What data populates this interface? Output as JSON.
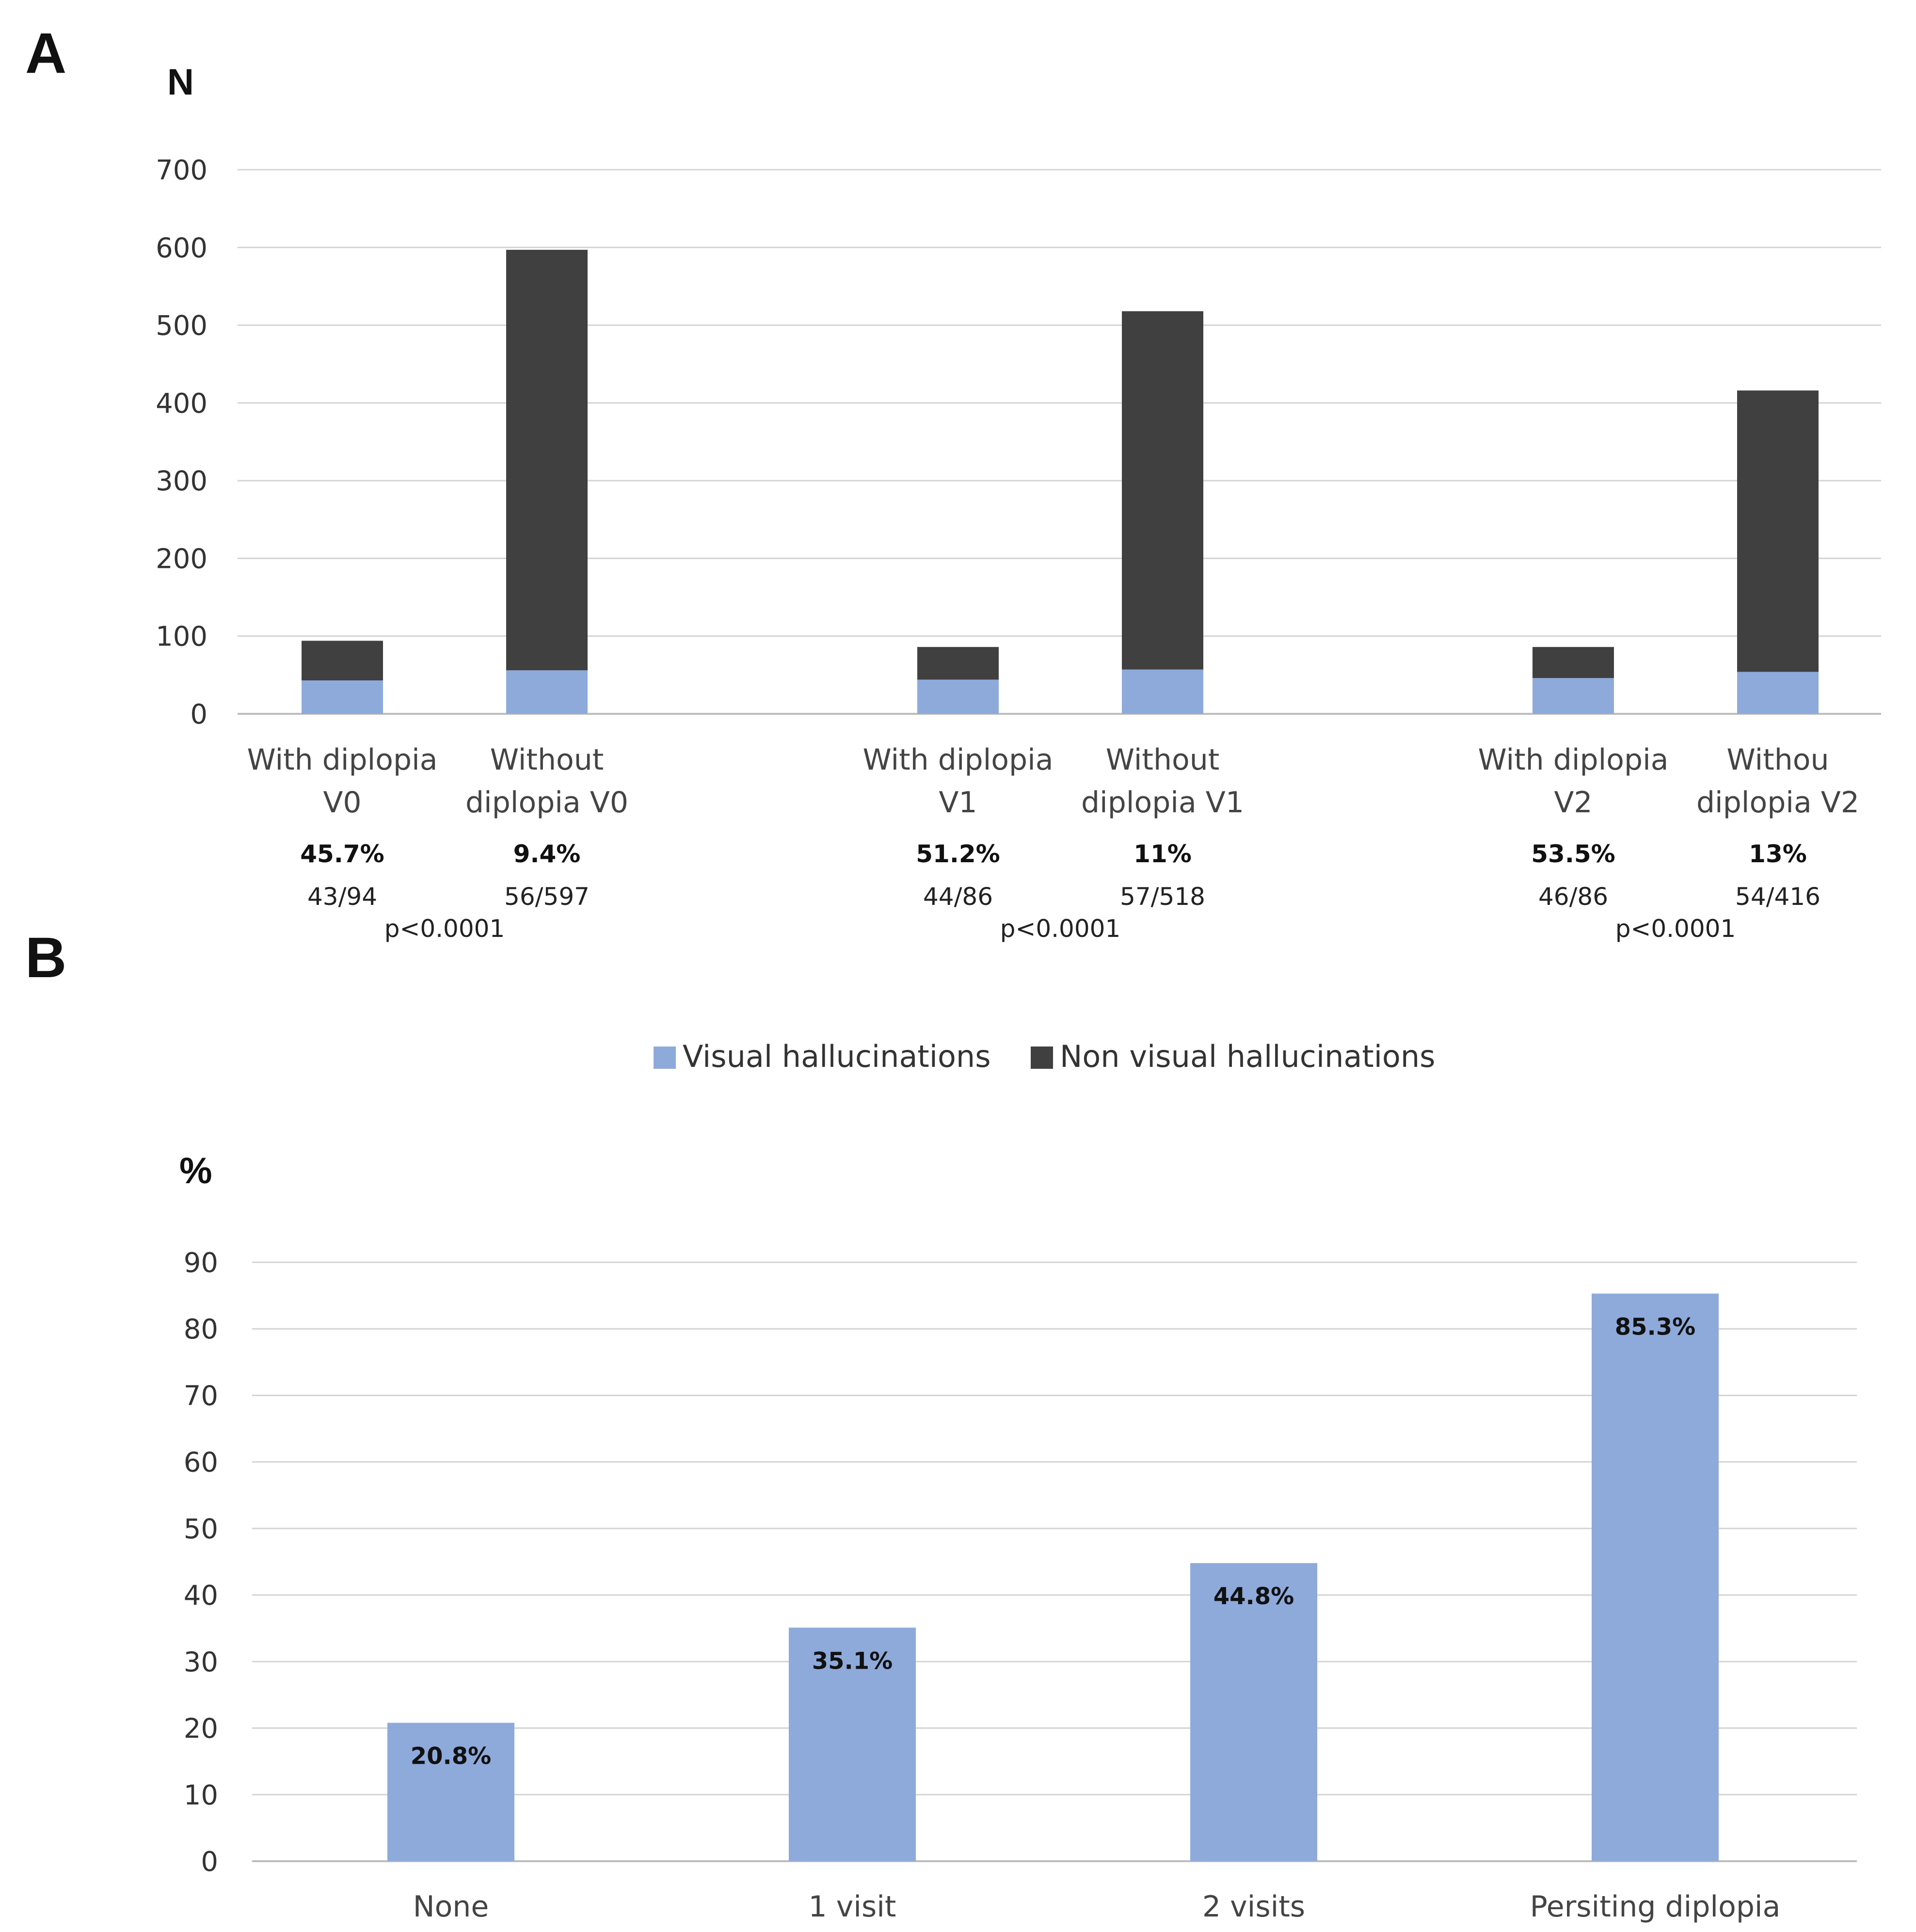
{
  "colors": {
    "visual": "#8eaadb",
    "non_visual": "#404040"
  },
  "legend": {
    "visual": "Visual hallucinations",
    "non_visual": "Non visual hallucinations"
  },
  "chart_data": [
    {
      "panel": "A",
      "type": "bar",
      "stacked": true,
      "ylabel": "N",
      "ylim": [
        0,
        700
      ],
      "yticks": [
        0,
        100,
        200,
        300,
        400,
        500,
        600,
        700
      ],
      "grid": true,
      "categories": [
        [
          "With diplopia",
          "V0"
        ],
        [
          "Without",
          "diplopia V0"
        ],
        [
          "With diplopia",
          "V1"
        ],
        [
          "Without",
          "diplopia V1"
        ],
        [
          "With diplopia",
          "V2"
        ],
        [
          "Withou",
          "diplopia V2"
        ]
      ],
      "series": [
        {
          "name": "Visual hallucinations",
          "values": [
            43,
            56,
            44,
            57,
            46,
            54
          ]
        },
        {
          "name": "Non visual hallucinations",
          "values": [
            51,
            541,
            42,
            461,
            40,
            362
          ]
        }
      ],
      "percent_labels": [
        "45.7%",
        "9.4%",
        "51.2%",
        "11%",
        "53.5%",
        "13%"
      ],
      "ratio_labels": [
        "43/94",
        "56/597",
        "44/86",
        "57/518",
        "46/86",
        "54/416"
      ],
      "p_values": [
        "p<0.0001",
        "p<0.0001",
        "p<0.0001"
      ]
    },
    {
      "panel": "B",
      "type": "bar",
      "ylabel": "%",
      "ylim": [
        0,
        90
      ],
      "yticks": [
        0,
        10,
        20,
        30,
        40,
        50,
        60,
        70,
        80,
        90
      ],
      "grid": true,
      "categories": [
        "None",
        "1 visit",
        "2 visits",
        "Persiting diplopia"
      ],
      "values": [
        20.8,
        35.1,
        44.8,
        85.3
      ],
      "value_labels": [
        "20.8%",
        "35.1%",
        "44.8%",
        "85.3%"
      ]
    }
  ]
}
